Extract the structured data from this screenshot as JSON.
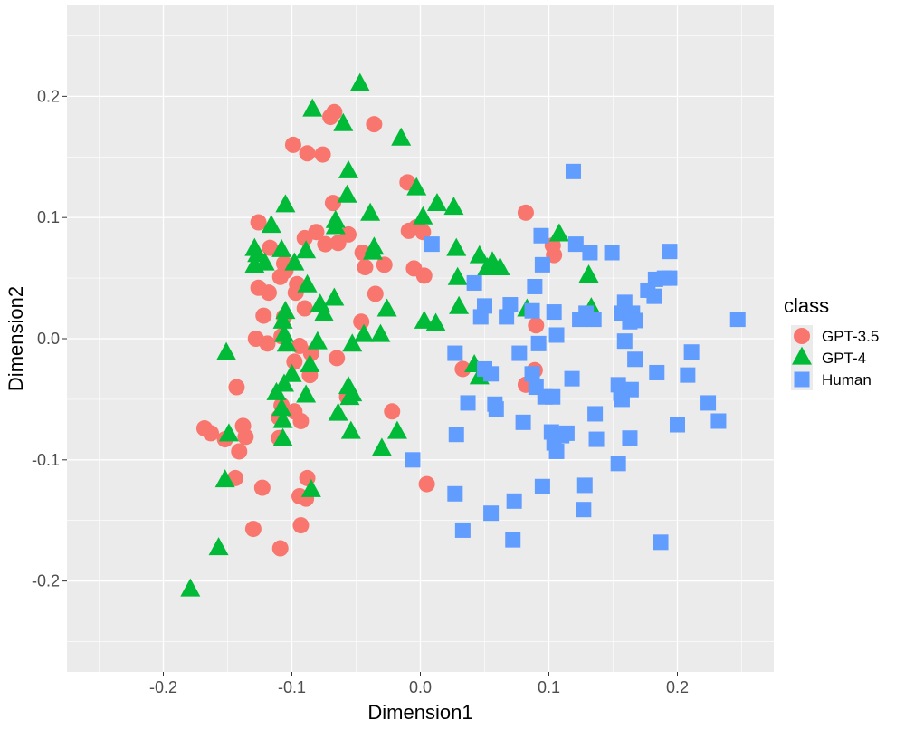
{
  "chart_data": {
    "type": "scatter",
    "title": "",
    "xlabel": "Dimension1",
    "ylabel": "Dimension2",
    "xlim": [
      -0.275,
      0.275
    ],
    "ylim": [
      -0.275,
      0.275
    ],
    "x_ticks": [
      -0.2,
      -0.1,
      0.0,
      0.1,
      0.2
    ],
    "x_tick_labels": [
      "-0.2",
      "-0.1",
      "0.0",
      "0.1",
      "0.2"
    ],
    "y_ticks": [
      -0.2,
      -0.1,
      0.0,
      0.1,
      0.2
    ],
    "y_tick_labels": [
      "-0.2",
      "-0.1",
      "0.0",
      "0.1",
      "0.2"
    ],
    "grid": true,
    "legend": {
      "title": "class",
      "position": "right"
    },
    "colors": {
      "panel": "#ebebeb",
      "grid": "#ffffff"
    },
    "series": [
      {
        "name": "GPT-3.5",
        "shape": "circle",
        "color": "#F8766D",
        "points": [
          [
            -0.067,
            0.187
          ],
          [
            -0.07,
            0.183
          ],
          [
            -0.036,
            0.177
          ],
          [
            -0.099,
            0.16
          ],
          [
            -0.088,
            0.153
          ],
          [
            -0.076,
            0.152
          ],
          [
            -0.01,
            0.129
          ],
          [
            -0.068,
            0.112
          ],
          [
            -0.003,
            0.092
          ],
          [
            0.082,
            0.104
          ],
          [
            -0.126,
            0.096
          ],
          [
            -0.081,
            0.088
          ],
          [
            -0.056,
            0.086
          ],
          [
            -0.09,
            0.083
          ],
          [
            -0.117,
            0.075
          ],
          [
            -0.074,
            0.078
          ],
          [
            -0.064,
            0.079
          ],
          [
            -0.009,
            0.089
          ],
          [
            0.002,
            0.088
          ],
          [
            -0.045,
            0.071
          ],
          [
            -0.028,
            0.061
          ],
          [
            -0.043,
            0.059
          ],
          [
            0.104,
            0.069
          ],
          [
            -0.105,
            0.056
          ],
          [
            -0.109,
            0.051
          ],
          [
            -0.106,
            0.062
          ],
          [
            -0.096,
            0.045
          ],
          [
            -0.126,
            0.042
          ],
          [
            -0.118,
            0.038
          ],
          [
            -0.097,
            0.038
          ],
          [
            -0.035,
            0.037
          ],
          [
            -0.005,
            0.058
          ],
          [
            0.003,
            0.052
          ],
          [
            0.103,
            0.077
          ],
          [
            -0.122,
            0.019
          ],
          [
            -0.106,
            0.018
          ],
          [
            -0.09,
            0.025
          ],
          [
            -0.046,
            0.014
          ],
          [
            -0.128,
            0.0
          ],
          [
            -0.108,
            0.002
          ],
          [
            -0.119,
            -0.004
          ],
          [
            -0.094,
            -0.006
          ],
          [
            -0.085,
            -0.012
          ],
          [
            -0.065,
            -0.016
          ],
          [
            -0.098,
            -0.019
          ],
          [
            -0.086,
            -0.03
          ],
          [
            -0.143,
            -0.04
          ],
          [
            0.033,
            -0.025
          ],
          [
            0.09,
            0.011
          ],
          [
            0.089,
            -0.026
          ],
          [
            0.082,
            -0.038
          ],
          [
            -0.057,
            -0.048
          ],
          [
            -0.022,
            -0.06
          ],
          [
            -0.108,
            -0.055
          ],
          [
            -0.11,
            -0.065
          ],
          [
            -0.098,
            -0.06
          ],
          [
            -0.093,
            -0.068
          ],
          [
            -0.168,
            -0.074
          ],
          [
            -0.163,
            -0.078
          ],
          [
            -0.152,
            -0.083
          ],
          [
            -0.138,
            -0.072
          ],
          [
            -0.136,
            -0.081
          ],
          [
            -0.11,
            -0.082
          ],
          [
            -0.141,
            -0.093
          ],
          [
            -0.144,
            -0.115
          ],
          [
            -0.123,
            -0.123
          ],
          [
            -0.088,
            -0.115
          ],
          [
            -0.094,
            -0.13
          ],
          [
            -0.089,
            -0.132
          ],
          [
            0.005,
            -0.12
          ],
          [
            -0.13,
            -0.157
          ],
          [
            -0.093,
            -0.154
          ],
          [
            -0.109,
            -0.173
          ]
        ]
      },
      {
        "name": "GPT-4",
        "shape": "triangle",
        "color": "#00BA38",
        "points": [
          [
            -0.047,
            0.21
          ],
          [
            -0.084,
            0.189
          ],
          [
            -0.015,
            0.165
          ],
          [
            -0.06,
            0.177
          ],
          [
            -0.056,
            0.138
          ],
          [
            -0.003,
            0.124
          ],
          [
            -0.105,
            0.11
          ],
          [
            -0.057,
            0.118
          ],
          [
            0.013,
            0.111
          ],
          [
            0.026,
            0.108
          ],
          [
            -0.039,
            0.103
          ],
          [
            0.002,
            0.1
          ],
          [
            -0.066,
            0.097
          ],
          [
            -0.116,
            0.093
          ],
          [
            -0.066,
            0.092
          ],
          [
            0.108,
            0.086
          ],
          [
            -0.129,
            0.074
          ],
          [
            -0.127,
            0.069
          ],
          [
            -0.108,
            0.073
          ],
          [
            -0.089,
            0.072
          ],
          [
            -0.036,
            0.075
          ],
          [
            -0.037,
            0.071
          ],
          [
            0.028,
            0.074
          ],
          [
            0.046,
            0.068
          ],
          [
            0.056,
            0.063
          ],
          [
            0.052,
            0.058
          ],
          [
            0.062,
            0.058
          ],
          [
            -0.121,
            0.062
          ],
          [
            -0.098,
            0.062
          ],
          [
            -0.129,
            0.06
          ],
          [
            -0.088,
            0.044
          ],
          [
            0.029,
            0.05
          ],
          [
            0.131,
            0.052
          ],
          [
            -0.067,
            0.033
          ],
          [
            -0.078,
            0.028
          ],
          [
            -0.105,
            0.022
          ],
          [
            -0.075,
            0.02
          ],
          [
            -0.026,
            0.024
          ],
          [
            0.03,
            0.026
          ],
          [
            0.083,
            0.024
          ],
          [
            0.133,
            0.025
          ],
          [
            -0.107,
            0.014
          ],
          [
            0.003,
            0.014
          ],
          [
            0.012,
            0.012
          ],
          [
            -0.106,
            0.003
          ],
          [
            -0.044,
            0.003
          ],
          [
            -0.031,
            0.003
          ],
          [
            -0.104,
            -0.005
          ],
          [
            -0.08,
            -0.003
          ],
          [
            -0.053,
            -0.005
          ],
          [
            -0.151,
            -0.012
          ],
          [
            -0.086,
            -0.022
          ],
          [
            -0.1,
            -0.03
          ],
          [
            -0.106,
            -0.038
          ],
          [
            0.042,
            -0.022
          ],
          [
            0.046,
            -0.032
          ],
          [
            -0.056,
            -0.04
          ],
          [
            -0.053,
            -0.046
          ],
          [
            -0.112,
            -0.045
          ],
          [
            -0.089,
            -0.047
          ],
          [
            -0.055,
            -0.049
          ],
          [
            -0.108,
            -0.058
          ],
          [
            -0.064,
            -0.062
          ],
          [
            -0.107,
            -0.068
          ],
          [
            -0.149,
            -0.079
          ],
          [
            -0.054,
            -0.077
          ],
          [
            -0.018,
            -0.077
          ],
          [
            -0.107,
            -0.083
          ],
          [
            -0.03,
            -0.091
          ],
          [
            -0.152,
            -0.117
          ],
          [
            -0.085,
            -0.125
          ],
          [
            -0.157,
            -0.173
          ],
          [
            -0.179,
            -0.207
          ]
        ]
      },
      {
        "name": "Human",
        "shape": "square",
        "color": "#619CFF",
        "points": [
          [
            0.119,
            0.138
          ],
          [
            0.009,
            0.078
          ],
          [
            0.094,
            0.085
          ],
          [
            0.121,
            0.078
          ],
          [
            0.132,
            0.071
          ],
          [
            0.149,
            0.071
          ],
          [
            0.194,
            0.072
          ],
          [
            0.095,
            0.061
          ],
          [
            0.183,
            0.049
          ],
          [
            0.19,
            0.05
          ],
          [
            0.194,
            0.05
          ],
          [
            0.042,
            0.046
          ],
          [
            0.089,
            0.043
          ],
          [
            0.177,
            0.04
          ],
          [
            0.182,
            0.035
          ],
          [
            0.05,
            0.027
          ],
          [
            0.07,
            0.028
          ],
          [
            0.159,
            0.03
          ],
          [
            0.087,
            0.023
          ],
          [
            0.104,
            0.022
          ],
          [
            0.129,
            0.021
          ],
          [
            0.124,
            0.016
          ],
          [
            0.135,
            0.016
          ],
          [
            0.157,
            0.021
          ],
          [
            0.165,
            0.021
          ],
          [
            0.047,
            0.018
          ],
          [
            0.067,
            0.018
          ],
          [
            0.163,
            0.014
          ],
          [
            0.167,
            0.015
          ],
          [
            0.247,
            0.016
          ],
          [
            0.106,
            0.003
          ],
          [
            0.092,
            -0.004
          ],
          [
            0.159,
            -0.002
          ],
          [
            0.027,
            -0.012
          ],
          [
            0.077,
            -0.012
          ],
          [
            0.211,
            -0.011
          ],
          [
            0.167,
            -0.017
          ],
          [
            0.05,
            -0.025
          ],
          [
            0.087,
            -0.029
          ],
          [
            0.184,
            -0.028
          ],
          [
            0.208,
            -0.03
          ],
          [
            0.118,
            -0.033
          ],
          [
            0.055,
            -0.029
          ],
          [
            0.09,
            -0.04
          ],
          [
            0.097,
            -0.048
          ],
          [
            0.103,
            -0.048
          ],
          [
            0.154,
            -0.038
          ],
          [
            0.156,
            -0.045
          ],
          [
            0.164,
            -0.042
          ],
          [
            0.157,
            -0.05
          ],
          [
            0.037,
            -0.053
          ],
          [
            0.058,
            -0.054
          ],
          [
            0.059,
            -0.058
          ],
          [
            0.136,
            -0.062
          ],
          [
            0.224,
            -0.053
          ],
          [
            0.232,
            -0.068
          ],
          [
            0.2,
            -0.071
          ],
          [
            0.08,
            -0.069
          ],
          [
            0.102,
            -0.077
          ],
          [
            0.11,
            -0.08
          ],
          [
            0.114,
            -0.078
          ],
          [
            0.028,
            -0.079
          ],
          [
            0.104,
            -0.086
          ],
          [
            0.137,
            -0.083
          ],
          [
            0.163,
            -0.082
          ],
          [
            -0.006,
            -0.1
          ],
          [
            0.154,
            -0.103
          ],
          [
            0.106,
            -0.093
          ],
          [
            0.095,
            -0.122
          ],
          [
            0.128,
            -0.121
          ],
          [
            0.027,
            -0.128
          ],
          [
            0.073,
            -0.134
          ],
          [
            0.127,
            -0.141
          ],
          [
            0.055,
            -0.144
          ],
          [
            0.033,
            -0.158
          ],
          [
            0.072,
            -0.166
          ],
          [
            0.187,
            -0.168
          ]
        ]
      }
    ]
  }
}
